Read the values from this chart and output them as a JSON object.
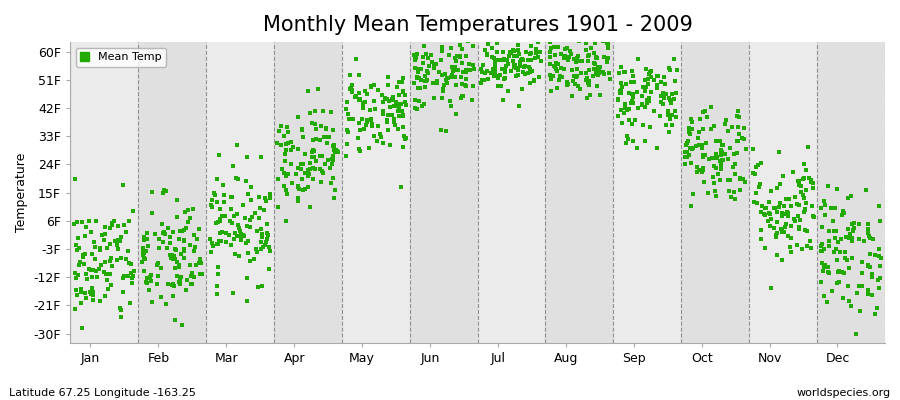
{
  "title": "Monthly Mean Temperatures 1901 - 2009",
  "ylabel": "Temperature",
  "yticks": [
    -30,
    -21,
    -12,
    -3,
    6,
    15,
    24,
    33,
    42,
    51,
    60
  ],
  "ytick_labels": [
    "-30F",
    "-21F",
    "-12F",
    "-3F",
    "6F",
    "15F",
    "24F",
    "33F",
    "42F",
    "51F",
    "60F"
  ],
  "ylim": [
    -33,
    63
  ],
  "months": [
    "Jan",
    "Feb",
    "Mar",
    "Apr",
    "May",
    "Jun",
    "Jul",
    "Aug",
    "Sep",
    "Oct",
    "Nov",
    "Dec"
  ],
  "month_means_F": [
    -8,
    -6,
    5,
    27,
    41,
    52,
    57,
    55,
    45,
    28,
    10,
    -4
  ],
  "month_spreads_F": [
    10,
    10,
    9,
    8,
    7,
    6,
    5,
    5,
    7,
    8,
    9,
    10
  ],
  "dot_color": "#22aa00",
  "bg_color_light": "#ebebeb",
  "bg_color_dark": "#e0e0e0",
  "title_fontsize": 15,
  "label_fontsize": 9,
  "subtitle_left": "Latitude 67.25 Longitude -163.25",
  "subtitle_right": "worldspecies.org",
  "n_years": 109
}
